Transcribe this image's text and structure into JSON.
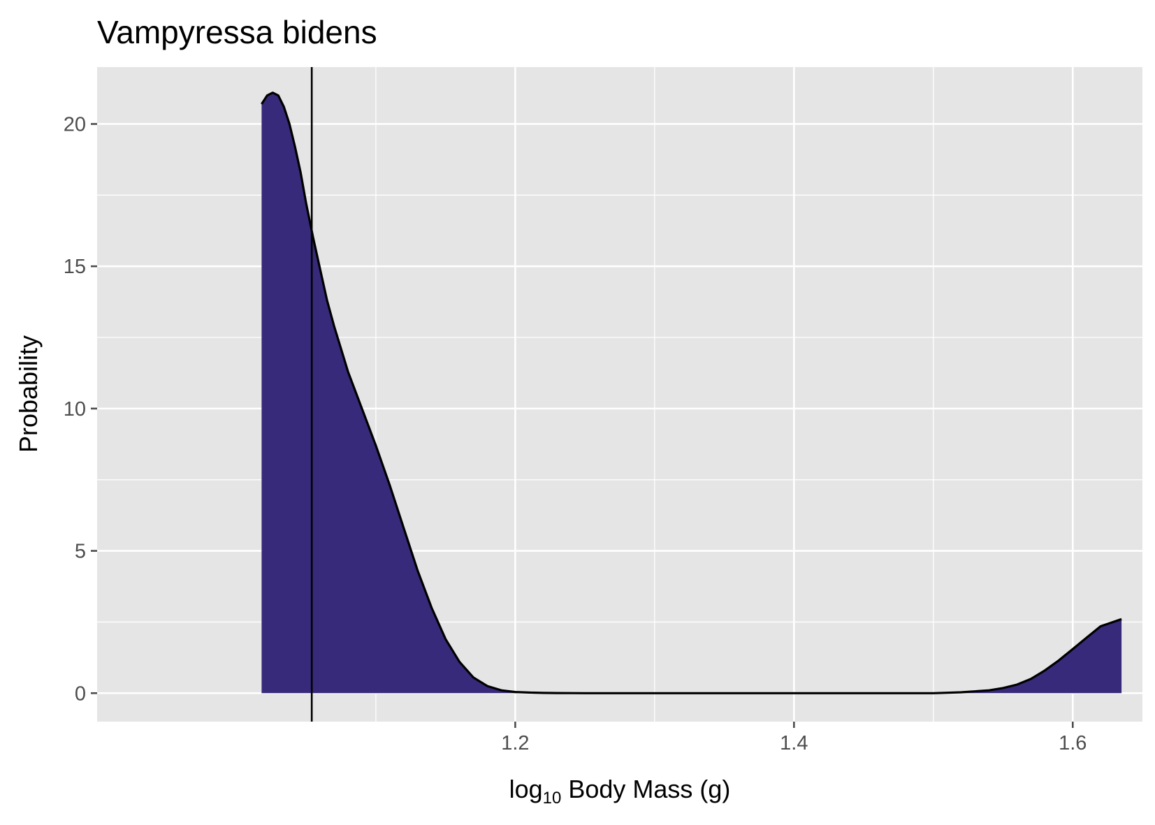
{
  "chart_data": {
    "type": "area",
    "title": "Vampyressa bidens",
    "xlabel": {
      "prefix": "log",
      "subscript": "10",
      "suffix": " Body Mass (g)"
    },
    "ylabel": "Probability",
    "xlim": [
      0.9,
      1.65
    ],
    "ylim": [
      -1.0,
      22.0
    ],
    "x_ticks": [
      1.2,
      1.4,
      1.6
    ],
    "x_tick_labels": [
      "1.2",
      "1.4",
      "1.6"
    ],
    "y_ticks": [
      0,
      5,
      10,
      15,
      20
    ],
    "y_tick_labels": [
      "0",
      "5",
      "10",
      "15",
      "20"
    ],
    "grid": true,
    "reference_line_x": 1.054,
    "colors": {
      "panel": "#e5e5e5",
      "grid": "#ffffff",
      "fill": "#382a7a",
      "line": "#000000",
      "tick": "#4d4d4d"
    },
    "series": [
      {
        "x": [
          1.018,
          1.022,
          1.026,
          1.03,
          1.034,
          1.038,
          1.042,
          1.046,
          1.05,
          1.055,
          1.06,
          1.065,
          1.07,
          1.075,
          1.08,
          1.09,
          1.1,
          1.11,
          1.12,
          1.13,
          1.14,
          1.15,
          1.16,
          1.17,
          1.18,
          1.19,
          1.2,
          1.21,
          1.22,
          1.23,
          1.24,
          1.25,
          1.26,
          1.28,
          1.3,
          1.35,
          1.4,
          1.45,
          1.5,
          1.52,
          1.54,
          1.55,
          1.56,
          1.57,
          1.58,
          1.59,
          1.6,
          1.61,
          1.62,
          1.635
        ],
        "y": [
          20.7,
          21.0,
          21.1,
          21.0,
          20.6,
          20.0,
          19.2,
          18.3,
          17.2,
          16.0,
          14.9,
          13.8,
          12.9,
          12.1,
          11.3,
          10.0,
          8.7,
          7.3,
          5.8,
          4.3,
          3.0,
          1.9,
          1.1,
          0.55,
          0.25,
          0.1,
          0.04,
          0.02,
          0.01,
          0.005,
          0.002,
          0.0,
          0.0,
          0.0,
          0.0,
          0.0,
          0.0,
          0.0,
          0.0,
          0.03,
          0.1,
          0.18,
          0.3,
          0.5,
          0.8,
          1.15,
          1.55,
          1.95,
          2.35,
          2.6
        ]
      }
    ]
  }
}
